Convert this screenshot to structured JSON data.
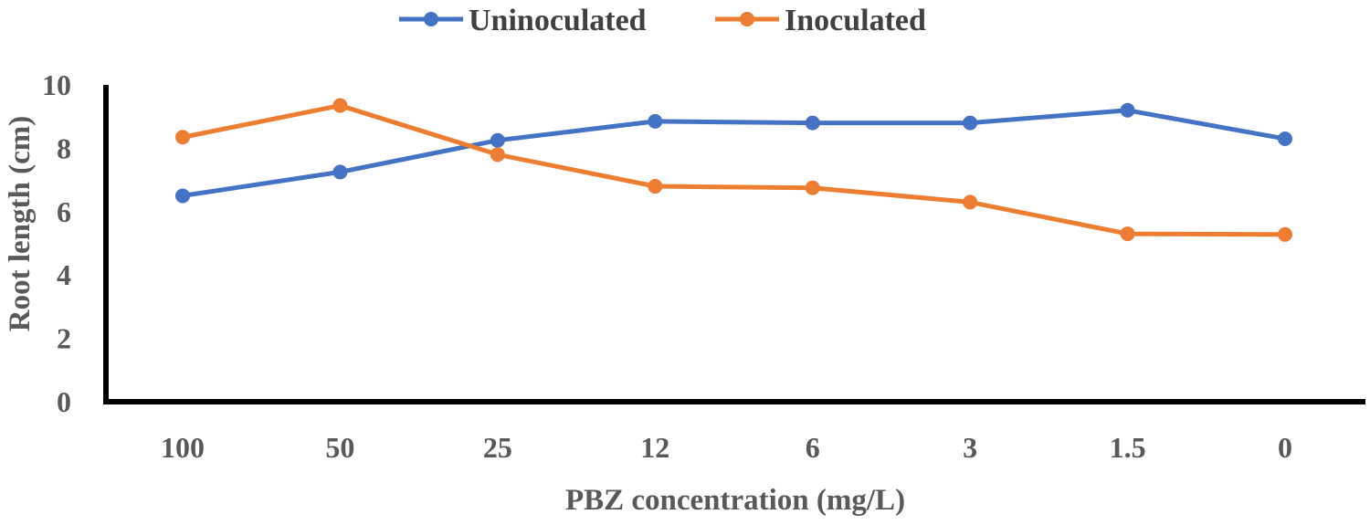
{
  "chart_data": {
    "type": "line",
    "categories": [
      "100",
      "50",
      "25",
      "12",
      "6",
      "3",
      "1.5",
      "0"
    ],
    "series": [
      {
        "name": "Uninoculated",
        "color": "#4472C4",
        "values": [
          6.5,
          7.25,
          8.25,
          8.85,
          8.8,
          8.8,
          9.2,
          8.3
        ]
      },
      {
        "name": "Inoculated",
        "color": "#ED7D31",
        "values": [
          8.35,
          9.35,
          7.8,
          6.8,
          6.75,
          6.3,
          5.3,
          5.28
        ]
      }
    ],
    "xlabel": "PBZ concentration (mg/L)",
    "ylabel": "Root length (cm)",
    "ylim": [
      0,
      10
    ],
    "yticks": [
      "0",
      "2",
      "4",
      "6",
      "8",
      "10"
    ],
    "grid": false,
    "legend": "top-center"
  }
}
